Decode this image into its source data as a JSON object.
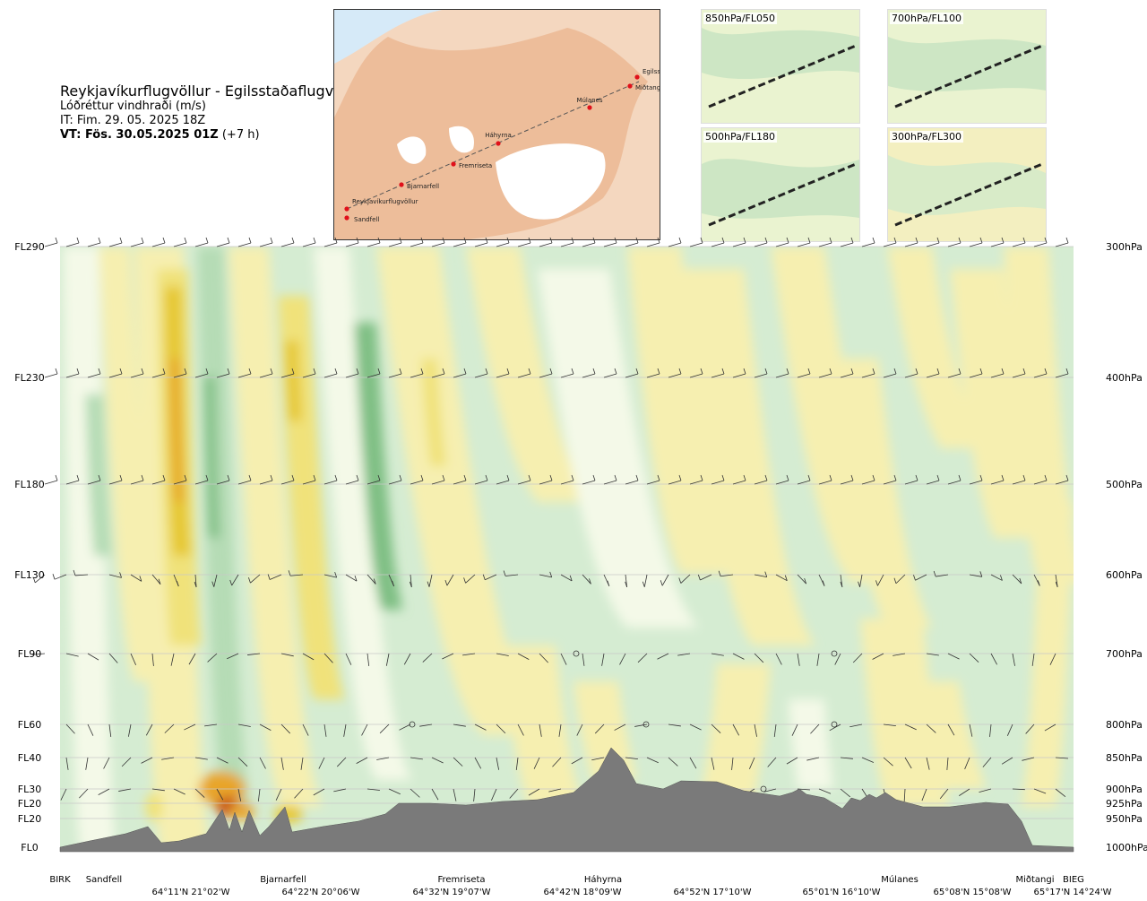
{
  "header": {
    "route": "Reykjavíkurflugvöllur - Egilsstaðaflugvöllur",
    "product": "Lóðréttur vindhraði (m/s)",
    "issue_time": "IT: Fim. 29. 05. 2025 18Z",
    "valid_bold": "VT: Fös. 30.05.2025 01Z",
    "valid_offset": "(+7 h)"
  },
  "map": {
    "stations": [
      "Reykjavíkurflugvöllur",
      "Sandfell",
      "Bjarnarfell",
      "Fremriseta",
      "Háhyrna",
      "Múlanes",
      "Miðtangi",
      "Egilsstaðir"
    ]
  },
  "thumbnails": [
    {
      "label": "850hPa/FL050"
    },
    {
      "label": "700hPa/FL100"
    },
    {
      "label": "500hPa/FL180"
    },
    {
      "label": "300hPa/FL300"
    }
  ],
  "chart_data": {
    "type": "heatmap",
    "title": "Lóðréttur vindhraði (m/s)",
    "y_levels_left": [
      "FL290",
      "FL230",
      "FL180",
      "FL130",
      "FL90",
      "FL60",
      "FL40",
      "FL30",
      "FL20",
      "FL20",
      "FL0"
    ],
    "y_levels_right": [
      "300hPa",
      "400hPa",
      "500hPa",
      "600hPa",
      "700hPa",
      "800hPa",
      "850hPa",
      "900hPa",
      "925hPa",
      "950hPa",
      "1000hPa"
    ],
    "pressure_hpa": [
      300,
      400,
      500,
      600,
      700,
      800,
      850,
      900,
      925,
      950,
      1000
    ],
    "x_places": [
      "BIRK",
      "Sandfell",
      "Bjarnarfell",
      "Fremriseta",
      "Háhyrna",
      "Múlanes",
      "Miðtangi",
      "BIEG"
    ],
    "x_coords": [
      "64°11'N 21°02'W",
      "64°22'N 20°06'W",
      "64°32'N 19°07'W",
      "64°42'N 18°09'W",
      "64°52'N 17°10'W",
      "65°01'N 16°10'W",
      "65°08'N 15°08'W",
      "65°17'N 14°24'W"
    ],
    "colors": {
      "strong_down": "#2e8b3e",
      "down": "#7fbf84",
      "weak_down": "#b5dcb5",
      "very_weak_down": "#d5ecd2",
      "near_zero": "#f4f9e8",
      "weak_up": "#f6efb0",
      "up": "#f0e27a",
      "strong_up": "#e6c832",
      "stronger_up": "#e8a52a",
      "max_up": "#c8541e",
      "terrain": "#7a7a7a"
    }
  }
}
